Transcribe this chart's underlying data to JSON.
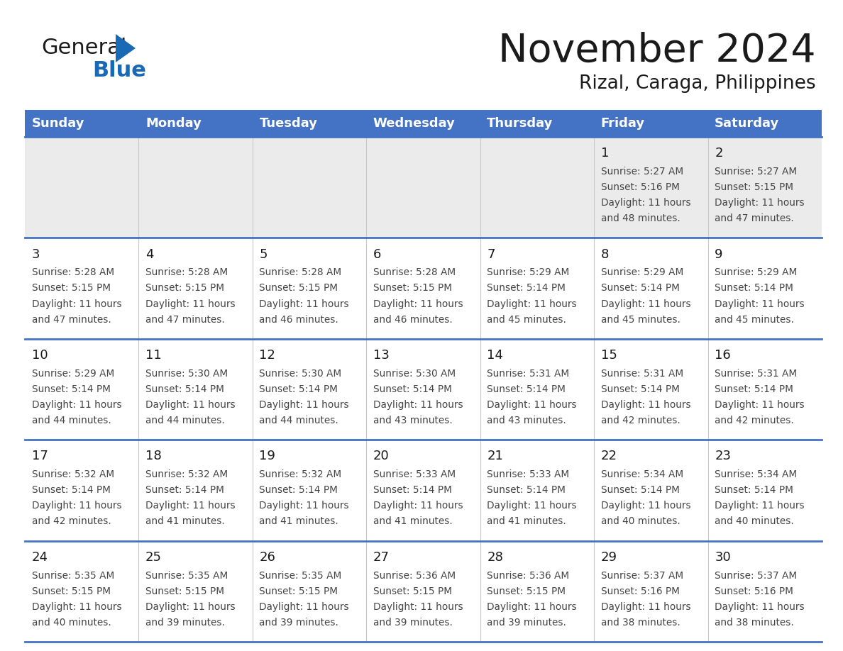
{
  "title": "November 2024",
  "subtitle": "Rizal, Caraga, Philippines",
  "days_of_week": [
    "Sunday",
    "Monday",
    "Tuesday",
    "Wednesday",
    "Thursday",
    "Friday",
    "Saturday"
  ],
  "header_bg": "#4472C4",
  "header_text": "#FFFFFF",
  "row0_bg": "#EBEBEB",
  "row_bg": "#FFFFFF",
  "day_text_color": "#1a1a1a",
  "info_text_color": "#444444",
  "row_border_color": "#4472C4",
  "col_border_color": "#C8C8C8",
  "calendar_data": [
    [
      null,
      null,
      null,
      null,
      null,
      {
        "day": "1",
        "sunrise": "5:27 AM",
        "sunset": "5:16 PM",
        "dl1": "Daylight: 11 hours",
        "dl2": "and 48 minutes."
      },
      {
        "day": "2",
        "sunrise": "5:27 AM",
        "sunset": "5:15 PM",
        "dl1": "Daylight: 11 hours",
        "dl2": "and 47 minutes."
      }
    ],
    [
      {
        "day": "3",
        "sunrise": "5:28 AM",
        "sunset": "5:15 PM",
        "dl1": "Daylight: 11 hours",
        "dl2": "and 47 minutes."
      },
      {
        "day": "4",
        "sunrise": "5:28 AM",
        "sunset": "5:15 PM",
        "dl1": "Daylight: 11 hours",
        "dl2": "and 47 minutes."
      },
      {
        "day": "5",
        "sunrise": "5:28 AM",
        "sunset": "5:15 PM",
        "dl1": "Daylight: 11 hours",
        "dl2": "and 46 minutes."
      },
      {
        "day": "6",
        "sunrise": "5:28 AM",
        "sunset": "5:15 PM",
        "dl1": "Daylight: 11 hours",
        "dl2": "and 46 minutes."
      },
      {
        "day": "7",
        "sunrise": "5:29 AM",
        "sunset": "5:14 PM",
        "dl1": "Daylight: 11 hours",
        "dl2": "and 45 minutes."
      },
      {
        "day": "8",
        "sunrise": "5:29 AM",
        "sunset": "5:14 PM",
        "dl1": "Daylight: 11 hours",
        "dl2": "and 45 minutes."
      },
      {
        "day": "9",
        "sunrise": "5:29 AM",
        "sunset": "5:14 PM",
        "dl1": "Daylight: 11 hours",
        "dl2": "and 45 minutes."
      }
    ],
    [
      {
        "day": "10",
        "sunrise": "5:29 AM",
        "sunset": "5:14 PM",
        "dl1": "Daylight: 11 hours",
        "dl2": "and 44 minutes."
      },
      {
        "day": "11",
        "sunrise": "5:30 AM",
        "sunset": "5:14 PM",
        "dl1": "Daylight: 11 hours",
        "dl2": "and 44 minutes."
      },
      {
        "day": "12",
        "sunrise": "5:30 AM",
        "sunset": "5:14 PM",
        "dl1": "Daylight: 11 hours",
        "dl2": "and 44 minutes."
      },
      {
        "day": "13",
        "sunrise": "5:30 AM",
        "sunset": "5:14 PM",
        "dl1": "Daylight: 11 hours",
        "dl2": "and 43 minutes."
      },
      {
        "day": "14",
        "sunrise": "5:31 AM",
        "sunset": "5:14 PM",
        "dl1": "Daylight: 11 hours",
        "dl2": "and 43 minutes."
      },
      {
        "day": "15",
        "sunrise": "5:31 AM",
        "sunset": "5:14 PM",
        "dl1": "Daylight: 11 hours",
        "dl2": "and 42 minutes."
      },
      {
        "day": "16",
        "sunrise": "5:31 AM",
        "sunset": "5:14 PM",
        "dl1": "Daylight: 11 hours",
        "dl2": "and 42 minutes."
      }
    ],
    [
      {
        "day": "17",
        "sunrise": "5:32 AM",
        "sunset": "5:14 PM",
        "dl1": "Daylight: 11 hours",
        "dl2": "and 42 minutes."
      },
      {
        "day": "18",
        "sunrise": "5:32 AM",
        "sunset": "5:14 PM",
        "dl1": "Daylight: 11 hours",
        "dl2": "and 41 minutes."
      },
      {
        "day": "19",
        "sunrise": "5:32 AM",
        "sunset": "5:14 PM",
        "dl1": "Daylight: 11 hours",
        "dl2": "and 41 minutes."
      },
      {
        "day": "20",
        "sunrise": "5:33 AM",
        "sunset": "5:14 PM",
        "dl1": "Daylight: 11 hours",
        "dl2": "and 41 minutes."
      },
      {
        "day": "21",
        "sunrise": "5:33 AM",
        "sunset": "5:14 PM",
        "dl1": "Daylight: 11 hours",
        "dl2": "and 41 minutes."
      },
      {
        "day": "22",
        "sunrise": "5:34 AM",
        "sunset": "5:14 PM",
        "dl1": "Daylight: 11 hours",
        "dl2": "and 40 minutes."
      },
      {
        "day": "23",
        "sunrise": "5:34 AM",
        "sunset": "5:14 PM",
        "dl1": "Daylight: 11 hours",
        "dl2": "and 40 minutes."
      }
    ],
    [
      {
        "day": "24",
        "sunrise": "5:35 AM",
        "sunset": "5:15 PM",
        "dl1": "Daylight: 11 hours",
        "dl2": "and 40 minutes."
      },
      {
        "day": "25",
        "sunrise": "5:35 AM",
        "sunset": "5:15 PM",
        "dl1": "Daylight: 11 hours",
        "dl2": "and 39 minutes."
      },
      {
        "day": "26",
        "sunrise": "5:35 AM",
        "sunset": "5:15 PM",
        "dl1": "Daylight: 11 hours",
        "dl2": "and 39 minutes."
      },
      {
        "day": "27",
        "sunrise": "5:36 AM",
        "sunset": "5:15 PM",
        "dl1": "Daylight: 11 hours",
        "dl2": "and 39 minutes."
      },
      {
        "day": "28",
        "sunrise": "5:36 AM",
        "sunset": "5:15 PM",
        "dl1": "Daylight: 11 hours",
        "dl2": "and 39 minutes."
      },
      {
        "day": "29",
        "sunrise": "5:37 AM",
        "sunset": "5:16 PM",
        "dl1": "Daylight: 11 hours",
        "dl2": "and 38 minutes."
      },
      {
        "day": "30",
        "sunrise": "5:37 AM",
        "sunset": "5:16 PM",
        "dl1": "Daylight: 11 hours",
        "dl2": "and 38 minutes."
      }
    ]
  ],
  "logo_color_general": "#1a1a1a",
  "logo_color_blue": "#1a69b5",
  "logo_triangle_color": "#1a69b5",
  "title_color": "#1a1a1a",
  "subtitle_color": "#1a1a1a"
}
